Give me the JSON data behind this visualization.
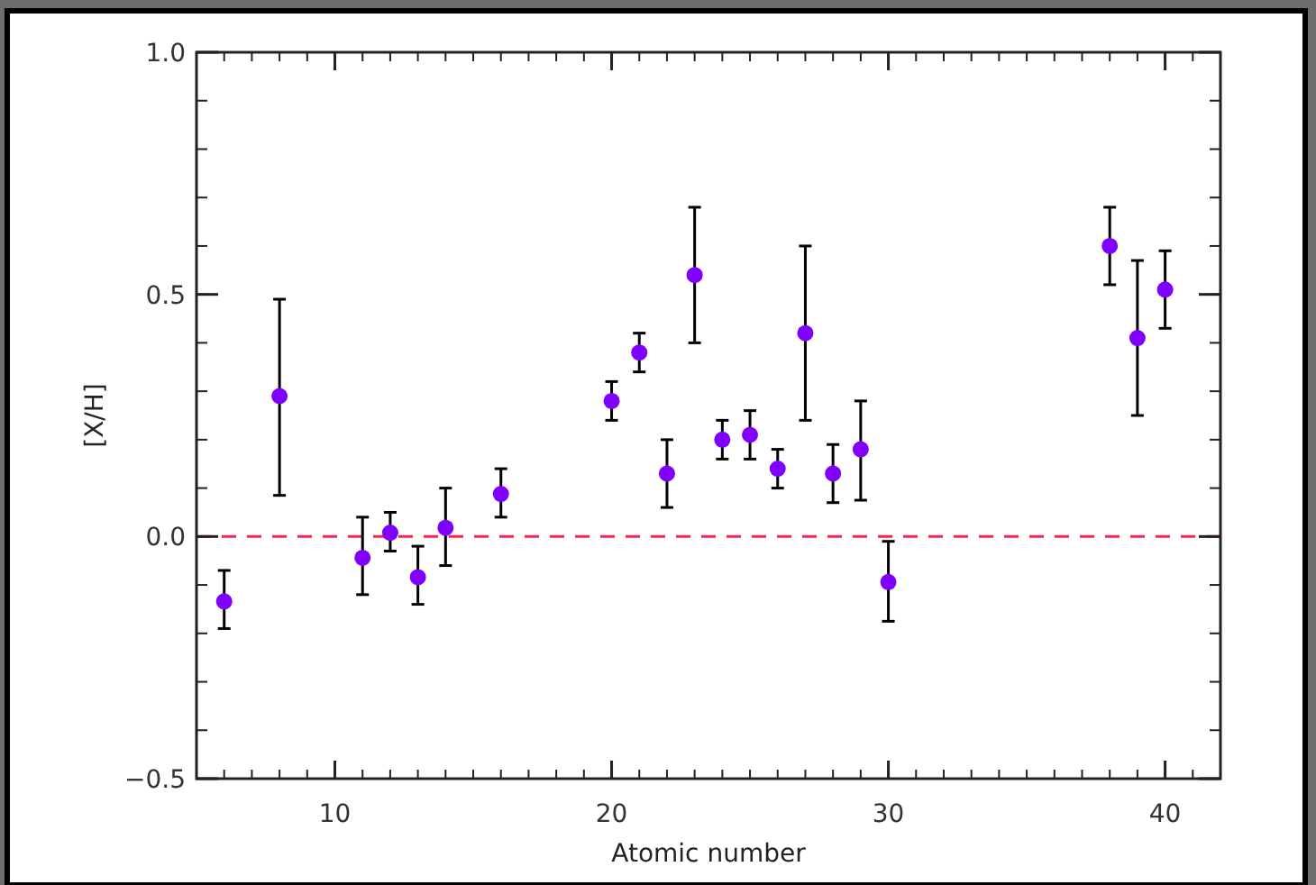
{
  "chart_data": {
    "type": "scatter",
    "xlabel": "Atomic number",
    "ylabel": "[X/H]",
    "x": [
      6,
      8,
      11,
      12,
      13,
      14,
      16,
      20,
      21,
      22,
      23,
      24,
      25,
      26,
      27,
      28,
      29,
      30,
      38,
      39,
      40
    ],
    "values": [
      -0.134,
      0.29,
      -0.044,
      0.008,
      -0.084,
      0.018,
      0.088,
      0.28,
      0.38,
      0.13,
      0.54,
      0.2,
      0.21,
      0.14,
      0.42,
      0.13,
      0.18,
      -0.094,
      0.6,
      0.41,
      0.51
    ],
    "errors": [
      [
        -0.19,
        -0.07
      ],
      [
        0.085,
        0.49
      ],
      [
        -0.12,
        0.04
      ],
      [
        -0.03,
        0.05
      ],
      [
        -0.14,
        -0.02
      ],
      [
        -0.06,
        0.1
      ],
      [
        0.04,
        0.14
      ],
      [
        0.24,
        0.32
      ],
      [
        0.34,
        0.42
      ],
      [
        0.06,
        0.2
      ],
      [
        0.4,
        0.68
      ],
      [
        0.16,
        0.24
      ],
      [
        0.16,
        0.26
      ],
      [
        0.1,
        0.18
      ],
      [
        0.24,
        0.6
      ],
      [
        0.07,
        0.19
      ],
      [
        0.075,
        0.28
      ],
      [
        -0.175,
        -0.01
      ],
      [
        0.52,
        0.68
      ],
      [
        0.25,
        0.57
      ],
      [
        0.43,
        0.59
      ]
    ],
    "color": "#8000ff",
    "marker": "circle",
    "xlim": [
      5,
      42
    ],
    "xticks": [
      10,
      20,
      30,
      40
    ],
    "ylim": [
      -0.5,
      1
    ],
    "yticks": [
      {
        "value": -0.5,
        "label": "−0.5"
      },
      {
        "value": 0,
        "label": "0.0"
      },
      {
        "value": 0.5,
        "label": "0.5"
      },
      {
        "value": 1,
        "label": "1.0"
      }
    ],
    "ref_lines": [
      {
        "axis": "y",
        "value": 0,
        "color": "#ff2050",
        "line_style": "dashed"
      }
    ],
    "grid": false
  }
}
